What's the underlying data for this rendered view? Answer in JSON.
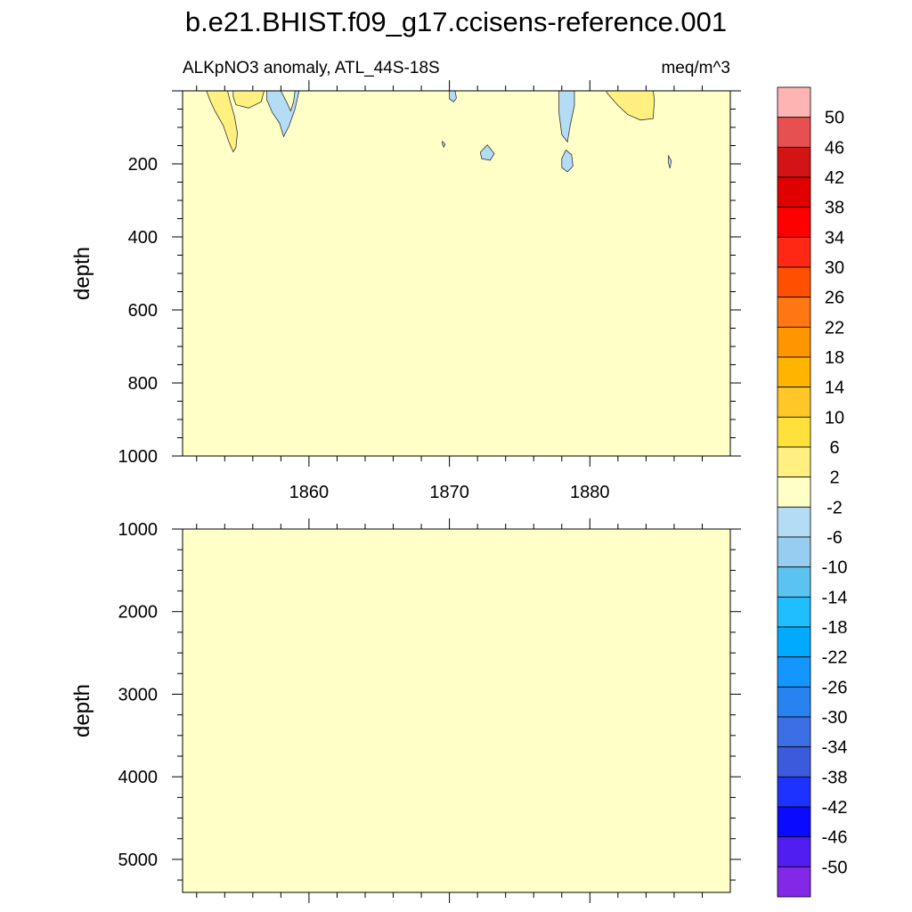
{
  "title": "b.e21.BHIST.f09_g17.ccisens-reference.001",
  "subtitle_left": "ALKpNO3 anomaly, ATL_44S-18S",
  "subtitle_right": "meq/m^3",
  "chart_data": [
    {
      "type": "heatmap",
      "panel": "upper",
      "xlabel": "",
      "ylabel": "depth",
      "xlim": [
        1851,
        1890
      ],
      "ylim": [
        0,
        1000
      ],
      "y_inverted": true,
      "x_ticks": [
        1860,
        1870,
        1880
      ],
      "y_ticks": [
        200,
        400,
        600,
        800,
        1000
      ],
      "background_range": [
        -2,
        2
      ],
      "contours": [
        {
          "class": "2 to 6",
          "color": "#fff080",
          "points": [
            [
              1851.5,
              0
            ],
            [
              1852.7,
              0
            ],
            [
              1853.0,
              30
            ],
            [
              1853.3,
              55
            ],
            [
              1853.6,
              75
            ],
            [
              1853.9,
              95
            ],
            [
              1854.3,
              140
            ],
            [
              1854.6,
              167
            ],
            [
              1854.8,
              155
            ],
            [
              1854.9,
              115
            ],
            [
              1854.7,
              70
            ],
            [
              1854.4,
              30
            ],
            [
              1854.2,
              0
            ],
            [
              1851.5,
              0
            ]
          ]
        },
        {
          "class": "2 to 6",
          "color": "#fff080",
          "points": [
            [
              1854.6,
              0
            ],
            [
              1856.8,
              0
            ],
            [
              1856.6,
              30
            ],
            [
              1855.7,
              47
            ],
            [
              1854.8,
              38
            ],
            [
              1854.6,
              15
            ],
            [
              1854.6,
              0
            ]
          ]
        },
        {
          "class": "-6 to -2",
          "color": "#b4dcf5",
          "points": [
            [
              1857.0,
              0
            ],
            [
              1858.0,
              0
            ],
            [
              1858.4,
              30
            ],
            [
              1858.7,
              55
            ],
            [
              1858.9,
              30
            ],
            [
              1859.0,
              0
            ],
            [
              1859.3,
              0
            ],
            [
              1859.0,
              50
            ],
            [
              1858.6,
              95
            ],
            [
              1858.2,
              125
            ],
            [
              1857.9,
              88
            ],
            [
              1857.4,
              60
            ],
            [
              1857.0,
              25
            ],
            [
              1857.0,
              0
            ]
          ]
        },
        {
          "class": "-6 to -2",
          "color": "#b4dcf5",
          "points": [
            [
              1870.0,
              0
            ],
            [
              1870.4,
              0
            ],
            [
              1870.5,
              20
            ],
            [
              1870.3,
              30
            ],
            [
              1870.0,
              22
            ],
            [
              1870.0,
              0
            ]
          ]
        },
        {
          "class": "-6 to -2",
          "color": "#b4dcf5",
          "points": [
            [
              1869.5,
              138
            ],
            [
              1869.7,
              146
            ],
            [
              1869.6,
              154
            ],
            [
              1869.5,
              146
            ],
            [
              1869.5,
              138
            ]
          ]
        },
        {
          "class": "-6 to -2",
          "color": "#b4dcf5",
          "points": [
            [
              1872.2,
              168
            ],
            [
              1872.7,
              148
            ],
            [
              1873.2,
              172
            ],
            [
              1872.9,
              190
            ],
            [
              1872.3,
              186
            ],
            [
              1872.2,
              168
            ]
          ]
        },
        {
          "class": "-6 to -2",
          "color": "#b4dcf5",
          "points": [
            [
              1877.8,
              0
            ],
            [
              1878.9,
              0
            ],
            [
              1878.9,
              40
            ],
            [
              1878.6,
              95
            ],
            [
              1878.4,
              140
            ],
            [
              1878.0,
              120
            ],
            [
              1877.8,
              60
            ],
            [
              1877.8,
              0
            ]
          ]
        },
        {
          "class": "-6 to -2",
          "color": "#b4dcf5",
          "points": [
            [
              1878.0,
              210
            ],
            [
              1878.4,
              222
            ],
            [
              1878.8,
              206
            ],
            [
              1878.7,
              175
            ],
            [
              1878.3,
              162
            ],
            [
              1878.0,
              185
            ],
            [
              1878.0,
              210
            ]
          ]
        },
        {
          "class": "-6 to -2",
          "color": "#b4dcf5",
          "points": [
            [
              1885.6,
              178
            ],
            [
              1885.8,
              192
            ],
            [
              1885.7,
              212
            ],
            [
              1885.6,
              198
            ],
            [
              1885.6,
              178
            ]
          ]
        },
        {
          "class": "2 to 6",
          "color": "#fff080",
          "points": [
            [
              1881.2,
              0
            ],
            [
              1884.5,
              0
            ],
            [
              1884.6,
              25
            ],
            [
              1884.5,
              76
            ],
            [
              1883.6,
              80
            ],
            [
              1882.7,
              65
            ],
            [
              1882.0,
              40
            ],
            [
              1881.2,
              5
            ],
            [
              1881.2,
              0
            ]
          ]
        }
      ]
    },
    {
      "type": "heatmap",
      "panel": "lower",
      "xlabel": "",
      "ylabel": "depth",
      "xlim": [
        1851,
        1890
      ],
      "ylim": [
        1000,
        5400
      ],
      "y_inverted": true,
      "x_ticks": [
        1860,
        1870,
        1880
      ],
      "y_ticks": [
        1000,
        2000,
        3000,
        4000,
        5000
      ],
      "background_range": [
        -2,
        2
      ],
      "contours": []
    }
  ],
  "colorbar": {
    "labels": [
      "50",
      "46",
      "42",
      "38",
      "34",
      "30",
      "26",
      "22",
      "18",
      "14",
      "10",
      "6",
      "2",
      "-2",
      "-6",
      "-10",
      "-14",
      "-18",
      "-22",
      "-26",
      "-30",
      "-34",
      "-38",
      "-42",
      "-46",
      "-50"
    ],
    "colors": [
      "#ffb4b4",
      "#e65050",
      "#d21414",
      "#e10000",
      "#ff0000",
      "#ff2814",
      "#ff5000",
      "#ff7814",
      "#ff9600",
      "#ffb400",
      "#ffc828",
      "#ffe13c",
      "#fff080",
      "#ffffc8",
      "#b4dcf5",
      "#96cdf0",
      "#5ac3f0",
      "#1ebeff",
      "#00aaff",
      "#1496ff",
      "#2882f0",
      "#3c6ee6",
      "#3c5adc",
      "#1e32ff",
      "#0a0aff",
      "#501ef0",
      "#8228e6"
    ]
  },
  "colors": {
    "background": "#ffffc8",
    "positive_small": "#fff080",
    "negative_small": "#b4dcf5"
  }
}
